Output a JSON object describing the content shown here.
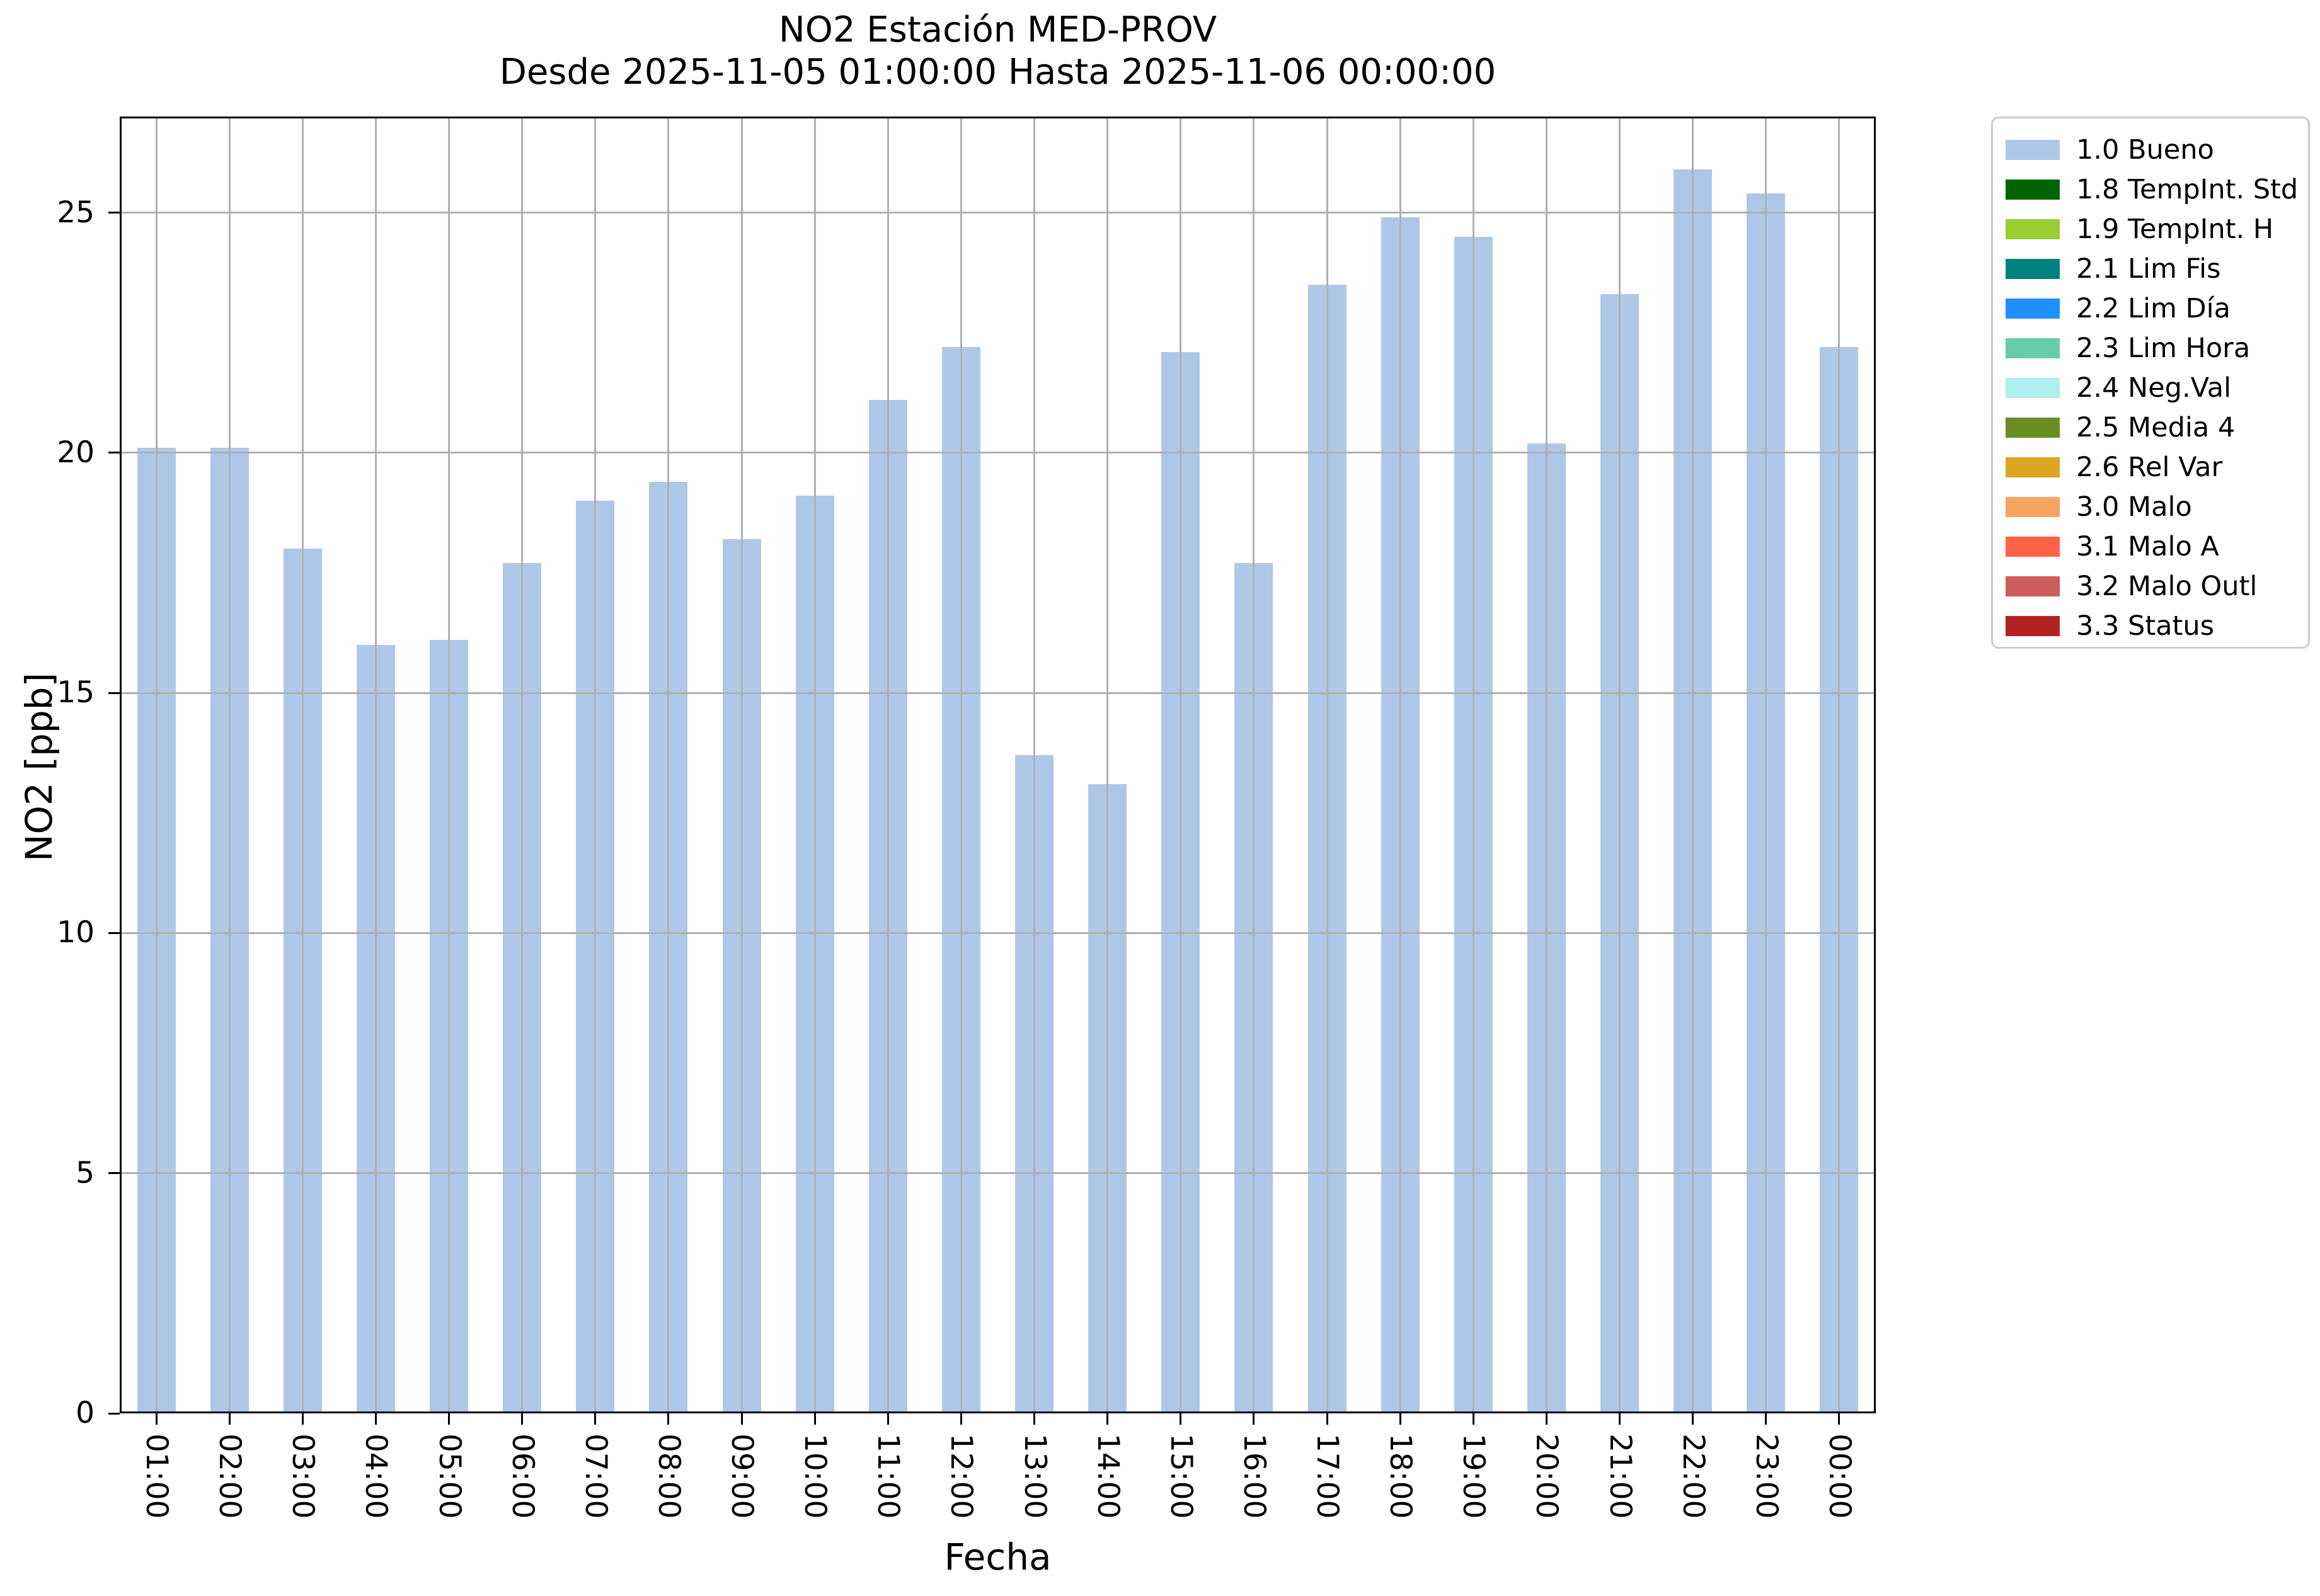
{
  "title": "NO2 Estación MED-PROV",
  "subtitle": "Desde 2025-11-05 01:00:00 Hasta 2025-11-06 00:00:00",
  "xlabel": "Fecha",
  "ylabel": "NO2 [ppb]",
  "chart_data": {
    "type": "bar",
    "title": "NO2 Estación MED-PROV",
    "subtitle": "Desde 2025-11-05 01:00:00 Hasta 2025-11-06 00:00:00",
    "xlabel": "Fecha",
    "ylabel": "NO2 [ppb]",
    "categories": [
      "01:00",
      "02:00",
      "03:00",
      "04:00",
      "05:00",
      "06:00",
      "07:00",
      "08:00",
      "09:00",
      "10:00",
      "11:00",
      "12:00",
      "13:00",
      "14:00",
      "15:00",
      "16:00",
      "17:00",
      "18:00",
      "19:00",
      "20:00",
      "21:00",
      "22:00",
      "23:00",
      "00:00"
    ],
    "values": [
      20.1,
      20.1,
      18.0,
      16.0,
      16.1,
      17.7,
      19.0,
      19.4,
      18.2,
      19.1,
      21.1,
      22.2,
      13.7,
      13.1,
      22.1,
      17.7,
      23.5,
      24.9,
      24.5,
      20.2,
      23.3,
      25.9,
      25.4,
      22.2
    ],
    "bar_color": "#aec7e8",
    "grid": true,
    "grid_color": "#b0b0b0",
    "ylim": [
      0,
      27
    ],
    "yticks": [
      0,
      5,
      10,
      15,
      20,
      25
    ],
    "legend_position": "outside upper right"
  },
  "legend": {
    "items": [
      {
        "label": "1.0 Bueno",
        "color": "#aec7e8"
      },
      {
        "label": "1.8 TempInt. Std",
        "color": "#006400"
      },
      {
        "label": "1.9 TempInt. H",
        "color": "#9acd32"
      },
      {
        "label": "2.1 Lim Fis",
        "color": "#008080"
      },
      {
        "label": "2.2 Lim Día",
        "color": "#1e90ff"
      },
      {
        "label": "2.3 Lim Hora",
        "color": "#66cdaa"
      },
      {
        "label": "2.4 Neg.Val",
        "color": "#afeeee"
      },
      {
        "label": "2.5 Media 4",
        "color": "#6b8e23"
      },
      {
        "label": "2.6 Rel Var",
        "color": "#daa520"
      },
      {
        "label": "3.0 Malo",
        "color": "#f4a460"
      },
      {
        "label": "3.1 Malo A",
        "color": "#ff6347"
      },
      {
        "label": "3.2 Malo Outl",
        "color": "#cd5c5c"
      },
      {
        "label": "3.3 Status",
        "color": "#b22222"
      }
    ]
  }
}
